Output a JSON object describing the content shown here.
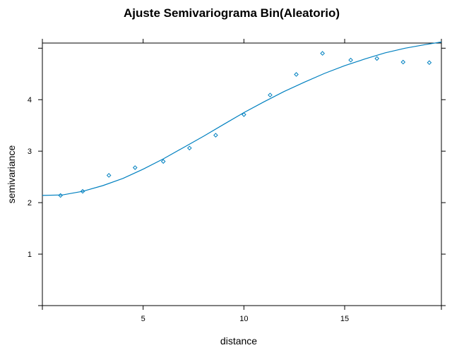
{
  "chart_data": {
    "type": "scatter",
    "title": "Ajuste Semivariograma Bin(Aleatorio)",
    "xlabel": "distance",
    "ylabel": "semivariance",
    "xlim": [
      0,
      19.8
    ],
    "ylim": [
      0,
      5.1
    ],
    "x_ticks": [
      5,
      10,
      15
    ],
    "y_ticks": [
      1,
      2,
      3,
      4
    ],
    "grid": false,
    "legend": "none",
    "colors": {
      "points": "#0080C0",
      "fit": "#0080C0",
      "frame": "#000000"
    },
    "series": [
      {
        "kind": "points",
        "x": [
          0.9,
          2.0,
          3.3,
          4.6,
          6.0,
          7.3,
          8.6,
          10.0,
          11.3,
          12.6,
          13.9,
          15.3,
          16.6,
          17.9,
          19.2
        ],
        "y": [
          2.14,
          2.22,
          2.53,
          2.68,
          2.8,
          3.06,
          3.31,
          3.71,
          4.09,
          4.49,
          4.9,
          4.77,
          4.8,
          4.73,
          4.72
        ]
      },
      {
        "kind": "fitted-line",
        "x": [
          0,
          1,
          2,
          3,
          4,
          5,
          6,
          7,
          8,
          9,
          10,
          11,
          12,
          13,
          14,
          15,
          16,
          17,
          18,
          19,
          19.8
        ],
        "y": [
          2.14,
          2.15,
          2.22,
          2.33,
          2.47,
          2.65,
          2.85,
          3.07,
          3.29,
          3.52,
          3.75,
          3.96,
          4.16,
          4.34,
          4.51,
          4.66,
          4.79,
          4.91,
          5.0,
          5.07,
          5.12
        ]
      }
    ]
  }
}
